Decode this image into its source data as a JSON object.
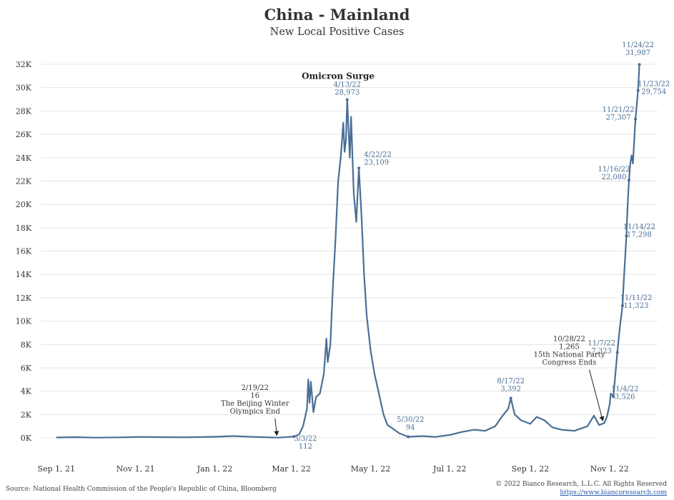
{
  "title": "China - Mainland",
  "subtitle": "New Local Positive Cases",
  "source": "Source: National Health Commission of the People's Republic of China, Bloomberg",
  "copyright": "© 2022 Bianco Research, L.L.C. All Rights Reserved",
  "url": "https://www.biancoresearch.com",
  "chart_data": {
    "type": "line",
    "title": "China - Mainland",
    "subtitle": "New Local Positive Cases",
    "line_color": "#4a6f96",
    "ylim": [
      0,
      32000
    ],
    "y_ticks": [
      {
        "value": 0,
        "label": "0K"
      },
      {
        "value": 2000,
        "label": "2K"
      },
      {
        "value": 4000,
        "label": "4K"
      },
      {
        "value": 6000,
        "label": "6K"
      },
      {
        "value": 8000,
        "label": "8K"
      },
      {
        "value": 10000,
        "label": "10K"
      },
      {
        "value": 12000,
        "label": "12K"
      },
      {
        "value": 14000,
        "label": "14K"
      },
      {
        "value": 16000,
        "label": "16K"
      },
      {
        "value": 18000,
        "label": "18K"
      },
      {
        "value": 20000,
        "label": "20K"
      },
      {
        "value": 22000,
        "label": "22K"
      },
      {
        "value": 24000,
        "label": "24K"
      },
      {
        "value": 26000,
        "label": "26K"
      },
      {
        "value": 28000,
        "label": "28K"
      },
      {
        "value": 30000,
        "label": "30K"
      },
      {
        "value": 32000,
        "label": "32K"
      }
    ],
    "x_ticks": [
      {
        "date": "2021-09-01",
        "label": "Sep 1, 21"
      },
      {
        "date": "2021-11-01",
        "label": "Nov 1, 21"
      },
      {
        "date": "2022-01-01",
        "label": "Jan 1, 22"
      },
      {
        "date": "2022-03-01",
        "label": "Mar 1, 22"
      },
      {
        "date": "2022-05-01",
        "label": "May 1, 22"
      },
      {
        "date": "2022-07-01",
        "label": "Jul 1, 22"
      },
      {
        "date": "2022-09-01",
        "label": "Sep 1, 22"
      },
      {
        "date": "2022-11-01",
        "label": "Nov 1, 22"
      }
    ],
    "xlim": [
      "2021-08-20",
      "2022-12-08"
    ],
    "series": [
      {
        "points": [
          [
            "2021-09-01",
            30
          ],
          [
            "2021-09-15",
            60
          ],
          [
            "2021-10-01",
            20
          ],
          [
            "2021-10-20",
            40
          ],
          [
            "2021-11-05",
            80
          ],
          [
            "2021-11-20",
            60
          ],
          [
            "2021-12-10",
            50
          ],
          [
            "2022-01-01",
            90
          ],
          [
            "2022-01-15",
            150
          ],
          [
            "2022-02-01",
            80
          ],
          [
            "2022-02-19",
            16
          ],
          [
            "2022-03-03",
            112
          ],
          [
            "2022-03-07",
            300
          ],
          [
            "2022-03-10",
            1000
          ],
          [
            "2022-03-13",
            2500
          ],
          [
            "2022-03-14",
            5000
          ],
          [
            "2022-03-15",
            3000
          ],
          [
            "2022-03-16",
            4800
          ],
          [
            "2022-03-18",
            2200
          ],
          [
            "2022-03-20",
            3500
          ],
          [
            "2022-03-23",
            3800
          ],
          [
            "2022-03-26",
            5500
          ],
          [
            "2022-03-28",
            8500
          ],
          [
            "2022-03-29",
            6500
          ],
          [
            "2022-03-31",
            8000
          ],
          [
            "2022-04-02",
            13000
          ],
          [
            "2022-04-04",
            17000
          ],
          [
            "2022-04-06",
            22000
          ],
          [
            "2022-04-08",
            24000
          ],
          [
            "2022-04-10",
            27000
          ],
          [
            "2022-04-11",
            24500
          ],
          [
            "2022-04-12",
            25500
          ],
          [
            "2022-04-13",
            28973
          ],
          [
            "2022-04-15",
            24000
          ],
          [
            "2022-04-16",
            27500
          ],
          [
            "2022-04-18",
            21000
          ],
          [
            "2022-04-20",
            18500
          ],
          [
            "2022-04-22",
            23109
          ],
          [
            "2022-04-24",
            19000
          ],
          [
            "2022-04-26",
            14000
          ],
          [
            "2022-04-28",
            10500
          ],
          [
            "2022-05-01",
            7500
          ],
          [
            "2022-05-04",
            5500
          ],
          [
            "2022-05-07",
            4000
          ],
          [
            "2022-05-11",
            2000
          ],
          [
            "2022-05-14",
            1100
          ],
          [
            "2022-05-18",
            800
          ],
          [
            "2022-05-23",
            400
          ],
          [
            "2022-05-30",
            94
          ],
          [
            "2022-06-10",
            150
          ],
          [
            "2022-06-20",
            80
          ],
          [
            "2022-07-01",
            250
          ],
          [
            "2022-07-10",
            500
          ],
          [
            "2022-07-20",
            700
          ],
          [
            "2022-07-28",
            600
          ],
          [
            "2022-08-05",
            1000
          ],
          [
            "2022-08-10",
            1800
          ],
          [
            "2022-08-15",
            2500
          ],
          [
            "2022-08-17",
            3392
          ],
          [
            "2022-08-20",
            2000
          ],
          [
            "2022-08-25",
            1500
          ],
          [
            "2022-09-01",
            1200
          ],
          [
            "2022-09-06",
            1800
          ],
          [
            "2022-09-12",
            1500
          ],
          [
            "2022-09-18",
            900
          ],
          [
            "2022-09-25",
            700
          ],
          [
            "2022-10-05",
            600
          ],
          [
            "2022-10-15",
            1000
          ],
          [
            "2022-10-20",
            1900
          ],
          [
            "2022-10-24",
            1100
          ],
          [
            "2022-10-28",
            1265
          ],
          [
            "2022-10-30",
            1800
          ],
          [
            "2022-11-01",
            2800
          ],
          [
            "2022-11-02",
            3800
          ],
          [
            "2022-11-04",
            3526
          ],
          [
            "2022-11-07",
            7323
          ],
          [
            "2022-11-09",
            9500
          ],
          [
            "2022-11-11",
            11323
          ],
          [
            "2022-11-12",
            13500
          ],
          [
            "2022-11-14",
            17298
          ],
          [
            "2022-11-15",
            20000
          ],
          [
            "2022-11-16",
            22080
          ],
          [
            "2022-11-17",
            23500
          ],
          [
            "2022-11-18",
            24200
          ],
          [
            "2022-11-19",
            23500
          ],
          [
            "2022-11-21",
            27307
          ],
          [
            "2022-11-23",
            29754
          ],
          [
            "2022-11-24",
            31987
          ]
        ]
      }
    ],
    "annotations": [
      {
        "date": "2022-04-13",
        "value": 28973,
        "lines": [
          "4/13/22",
          "28,973"
        ],
        "dx": 0,
        "dy": -18,
        "anchor": "middle",
        "color": "#4a6f96"
      },
      {
        "date": "2022-04-22",
        "value": 23109,
        "lines": [
          "4/22/22",
          "23,109"
        ],
        "dx": 7,
        "dy": -16,
        "anchor": "start",
        "color": "#4a6f96"
      },
      {
        "date": "2022-03-03",
        "value": 112,
        "lines": [
          "3/3/22",
          "112"
        ],
        "dx": 16,
        "dy": 6,
        "anchor": "middle",
        "color": "#4a6f96"
      },
      {
        "date": "2022-05-30",
        "value": 94,
        "lines": [
          "5/30/22",
          "94"
        ],
        "dx": 3,
        "dy": -21,
        "anchor": "middle",
        "color": "#4a6f96"
      },
      {
        "date": "2022-08-17",
        "value": 3392,
        "lines": [
          "8/17/22",
          "3,392"
        ],
        "dx": 0,
        "dy": -21,
        "anchor": "middle",
        "color": "#4a6f96"
      },
      {
        "date": "2022-11-04",
        "value": 3526,
        "lines": [
          "11/4/22",
          "3,526"
        ],
        "dx": 16,
        "dy": -8,
        "anchor": "middle",
        "color": "#4a6f96"
      },
      {
        "date": "2022-11-07",
        "value": 7323,
        "lines": [
          "11/7/22",
          "7,323"
        ],
        "dx": -22,
        "dy": -10,
        "anchor": "middle",
        "color": "#4a6f96"
      },
      {
        "date": "2022-11-11",
        "value": 11323,
        "lines": [
          "11/11/22",
          "11,323"
        ],
        "dx": 19,
        "dy": -8,
        "anchor": "middle",
        "color": "#4a6f96"
      },
      {
        "date": "2022-11-14",
        "value": 17298,
        "lines": [
          "11/14/22",
          "17,298"
        ],
        "dx": 18,
        "dy": -10,
        "anchor": "middle",
        "color": "#4a6f96"
      },
      {
        "date": "2022-11-16",
        "value": 22080,
        "lines": [
          "11/16/22",
          "22,080"
        ],
        "dx": -21,
        "dy": -12,
        "anchor": "middle",
        "color": "#4a6f96"
      },
      {
        "date": "2022-11-21",
        "value": 27307,
        "lines": [
          "11/21/22",
          "27,307"
        ],
        "dx": -24,
        "dy": -10,
        "anchor": "middle",
        "color": "#4a6f96"
      },
      {
        "date": "2022-11-23",
        "value": 29754,
        "lines": [
          "11/23/22",
          "29,754"
        ],
        "dx": 22,
        "dy": -6,
        "anchor": "middle",
        "color": "#4a6f96"
      },
      {
        "date": "2022-11-24",
        "value": 31987,
        "lines": [
          "11/24/22",
          "31,987"
        ],
        "dx": -2,
        "dy": -24,
        "anchor": "middle",
        "color": "#4a6f96"
      }
    ],
    "callouts": [
      {
        "lines": [
          "2/19/22",
          "16",
          "The Beijing Winter",
          "Olympics End"
        ],
        "date": "2022-02-19",
        "value": 16,
        "label_date": "2022-02-01",
        "label_value": 4100,
        "color": "#333333"
      },
      {
        "lines": [
          "10/28/22",
          "1,265",
          "15th National Party",
          "Congress Ends"
        ],
        "date": "2022-10-28",
        "value": 1265,
        "label_date": "2022-10-01",
        "label_value": 8300,
        "color": "#333333"
      }
    ],
    "event_label": {
      "text": "Omicron Surge",
      "date": "2022-04-06",
      "value": 31000
    }
  }
}
